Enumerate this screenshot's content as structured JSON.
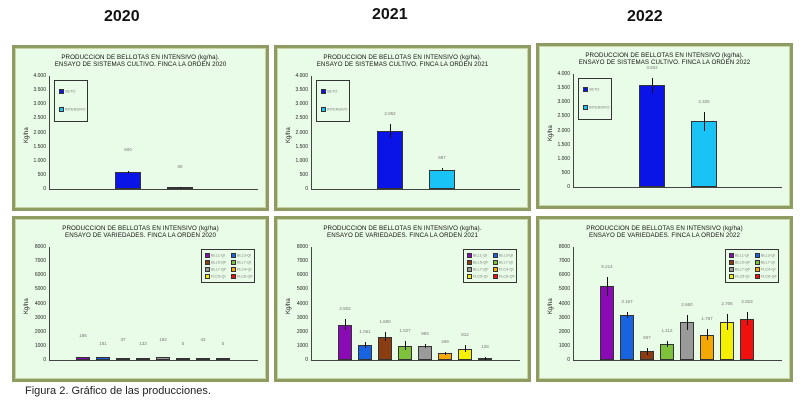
{
  "years": [
    "2020",
    "2021",
    "2022"
  ],
  "caption": "Figura 2. Gráfico de las producciones.",
  "colors": {
    "panel_bg": "#e9fce7",
    "panel_border": "#8e9c62",
    "seto": "#0a14e6",
    "intensivo": "#19c3f5",
    "varieties": [
      "#8a0bb5",
      "#1763e0",
      "#8a3d10",
      "#7dc13c",
      "#9a9a9a",
      "#f5a800",
      "#f5f000",
      "#f01010"
    ]
  },
  "chart_data": [
    {
      "type": "bar",
      "title": "PRODUCCION DE BELLOTAS EN INTENSIVO (kg/ha). ENSAYO DE SISTEMAS CULTIVO. FINCA LA ORDEN 2020",
      "title_lines": [
        "PRODUCCION DE BELLOTAS EN INTENSIVO (kg/ha).",
        "ENSAYO DE SISTEMAS CULTIVO. FINCA LA ORDEN 2020"
      ],
      "ylabel": "Kg/ha",
      "ylim": [
        0,
        4000
      ],
      "yticks": [
        "4.000",
        "3.500",
        "3.000",
        "2.500",
        "2.000",
        "1.500",
        "1.000",
        "500",
        "0"
      ],
      "categories": [
        "SETO",
        "INTENSIVO"
      ],
      "values": [
        600,
        60
      ],
      "error": [
        40,
        15
      ],
      "labels": [
        "600",
        "60"
      ],
      "legend": [
        "SETO",
        "INTENSIVO"
      ],
      "legend_position": "upper-left"
    },
    {
      "type": "bar",
      "title": "PRODUCCION DE BELLOTAS EN INTENSIVO (kg/ha). ENSAYO DE SISTEMAS CULTIVO. FINCA LA ORDEN 2021",
      "title_lines": [
        "PRODUCCION DE BELLOTAS EN INTENSIVO (kg/ha).",
        "ENSAYO DE SISTEMAS CULTIVO. FINCA LA ORDEN 2021"
      ],
      "ylabel": "Kg/ha",
      "ylim": [
        0,
        4000
      ],
      "yticks": [
        "4.000",
        "3.500",
        "3.000",
        "2.500",
        "2.000",
        "1.500",
        "1.000",
        "500",
        "0"
      ],
      "categories": [
        "SETO",
        "INTENSIVO"
      ],
      "values": [
        2062,
        687
      ],
      "error": [
        250,
        50
      ],
      "labels": [
        "2.062",
        "687"
      ],
      "legend": [
        "SETO",
        "INTENSIVO"
      ],
      "legend_position": "upper-left"
    },
    {
      "type": "bar",
      "title": "PRODUCCION DE BELLOTAS EN INTENSIVO (kg/ha). ENSAYO DE SISTEMAS CULTIVO. FINCA LA ORDEN 2022",
      "title_lines": [
        "PRODUCCION DE BELLOTAS EN INTENSIVO (kg/ha).",
        "ENSAYO DE SISTEMAS CULTIVO. FINCA LA ORDEN 2022"
      ],
      "ylabel": "Kg/ha",
      "ylim": [
        0,
        4000
      ],
      "yticks": [
        "4.000",
        "3.500",
        "3.000",
        "2.500",
        "2.000",
        "1.500",
        "1.000",
        "500",
        "0"
      ],
      "categories": [
        "SETO",
        "INTENSIVO"
      ],
      "values": [
        3602,
        2325
      ],
      "error": [
        270,
        330
      ],
      "labels": [
        "3.602",
        "2.325"
      ],
      "legend": [
        "SETO",
        "INTENSIVO"
      ],
      "legend_position": "upper-left"
    },
    {
      "type": "bar",
      "title": "PRODUCCION DE BELLOTAS EN INTENSIVO (kg/ha). ENSAYO DE VARIEDADES. FINCA LA ORDEN 2020",
      "title_lines": [
        "PRODUCCION DE BELLOTAS EN INTENSIVO (kg/ha)",
        "ENSAYO DE VARIEDADES. FINCA LA ORDEN 2020"
      ],
      "ylabel": "Kg/ha",
      "ylim": [
        0,
        8000
      ],
      "yticks": [
        "8000",
        "7000",
        "6000",
        "5000",
        "4000",
        "3000",
        "2000",
        "1000",
        "0"
      ],
      "categories": [
        "BLL1-QI",
        "BLL3-QI",
        "BLL5-QF",
        "BLL7-QI",
        "BLL7-QF",
        "FLC4-QI",
        "FLC5-QI",
        "FLC6-QF"
      ],
      "values": [
        186,
        181,
        37,
        133,
        182,
        0,
        42,
        0
      ],
      "error": [
        0,
        0,
        0,
        0,
        0,
        0,
        0,
        0
      ],
      "labels": [
        "186",
        "181",
        "37",
        "133",
        "182",
        "0",
        "42",
        "0"
      ],
      "legend": [
        "BLL1-QI",
        "BLL3-QI",
        "BLL5-QF",
        "BLL7-QI",
        "BLL7-QF",
        "FLC4-QI",
        "FLC5-QI",
        "FLC6-QF"
      ],
      "legend_position": "upper-right"
    },
    {
      "type": "bar",
      "title": "PRODUCCION DE BELLOTAS EN INTENSIVO (kg/ha). ENSAYO DE VARIEDADES. FINCA LA ORDEN 2021",
      "title_lines": [
        "PRODUCCION DE BELLOTAS EN INTENSIVO (kg/ha).",
        "ENSAYO DE VARIEDADES. FINCA LA ORDEN 2021"
      ],
      "ylabel": "Kg/ha",
      "ylim": [
        0,
        8000
      ],
      "yticks": [
        "8000",
        "7000",
        "6000",
        "5000",
        "4000",
        "3000",
        "2000",
        "1000",
        "0"
      ],
      "categories": [
        "BLL1-QI",
        "BLL3-QI",
        "BLL5-QF",
        "BLL7-QI",
        "BLL7-QF",
        "FLC4-QI",
        "FLC5-QI",
        "FLC6-QF"
      ],
      "values": [
        2502,
        1061,
        1650,
        1027,
        993,
        469,
        812,
        128
      ],
      "error": [
        400,
        200,
        300,
        300,
        150,
        100,
        250,
        100
      ],
      "labels": [
        "2.502",
        "1.061",
        "1.650",
        "1.027",
        "993",
        "469",
        "812",
        "128"
      ],
      "legend": [
        "BLL1-QI",
        "BLL3-QI",
        "BLL5-QF",
        "BLL7-QI",
        "BLL7-QF",
        "FLC4-QI",
        "FLC5-QI",
        "FLC6-QF"
      ],
      "legend_position": "upper-right"
    },
    {
      "type": "bar",
      "title": "PRODUCCION DE BELLOTAS EN INTENSIVO (kg/ha). ENSAYO DE VARIEDADES. FINCA LA ORDEN 2022",
      "title_lines": [
        "PRODUCCION DE BELLOTAS EN INTENSIVO (kg/ha)",
        "ENSAYO DE VARIEDADES. FINCA LA ORDEN 2022"
      ],
      "ylabel": "Kg/ha",
      "ylim": [
        0,
        8000
      ],
      "yticks": [
        "8000",
        "7000",
        "6000",
        "5000",
        "4000",
        "3000",
        "2000",
        "1000",
        "0"
      ],
      "categories": [
        "BLL1-QI",
        "BLL3-QI",
        "BLL5-QF",
        "BLL7-QI",
        "BLL7-QF",
        "FLC4-QI",
        "FLC5-QI",
        "FLC6-QF"
      ],
      "values": [
        5214,
        3167,
        607,
        1112,
        2660,
        1787,
        2706,
        2923
      ],
      "error": [
        650,
        200,
        250,
        200,
        550,
        400,
        550,
        450
      ],
      "labels": [
        "5.214",
        "3.167",
        "607",
        "1.112",
        "2.660",
        "1.787",
        "2.706",
        "2.923"
      ],
      "legend": [
        "BLL1-QI",
        "BLL3-QI",
        "BLL5-QF",
        "BLL7-QI",
        "BLL7-QF",
        "FLC4-QI",
        "FLC5-QI",
        "FLC6-QF"
      ],
      "legend_position": "upper-right"
    }
  ]
}
